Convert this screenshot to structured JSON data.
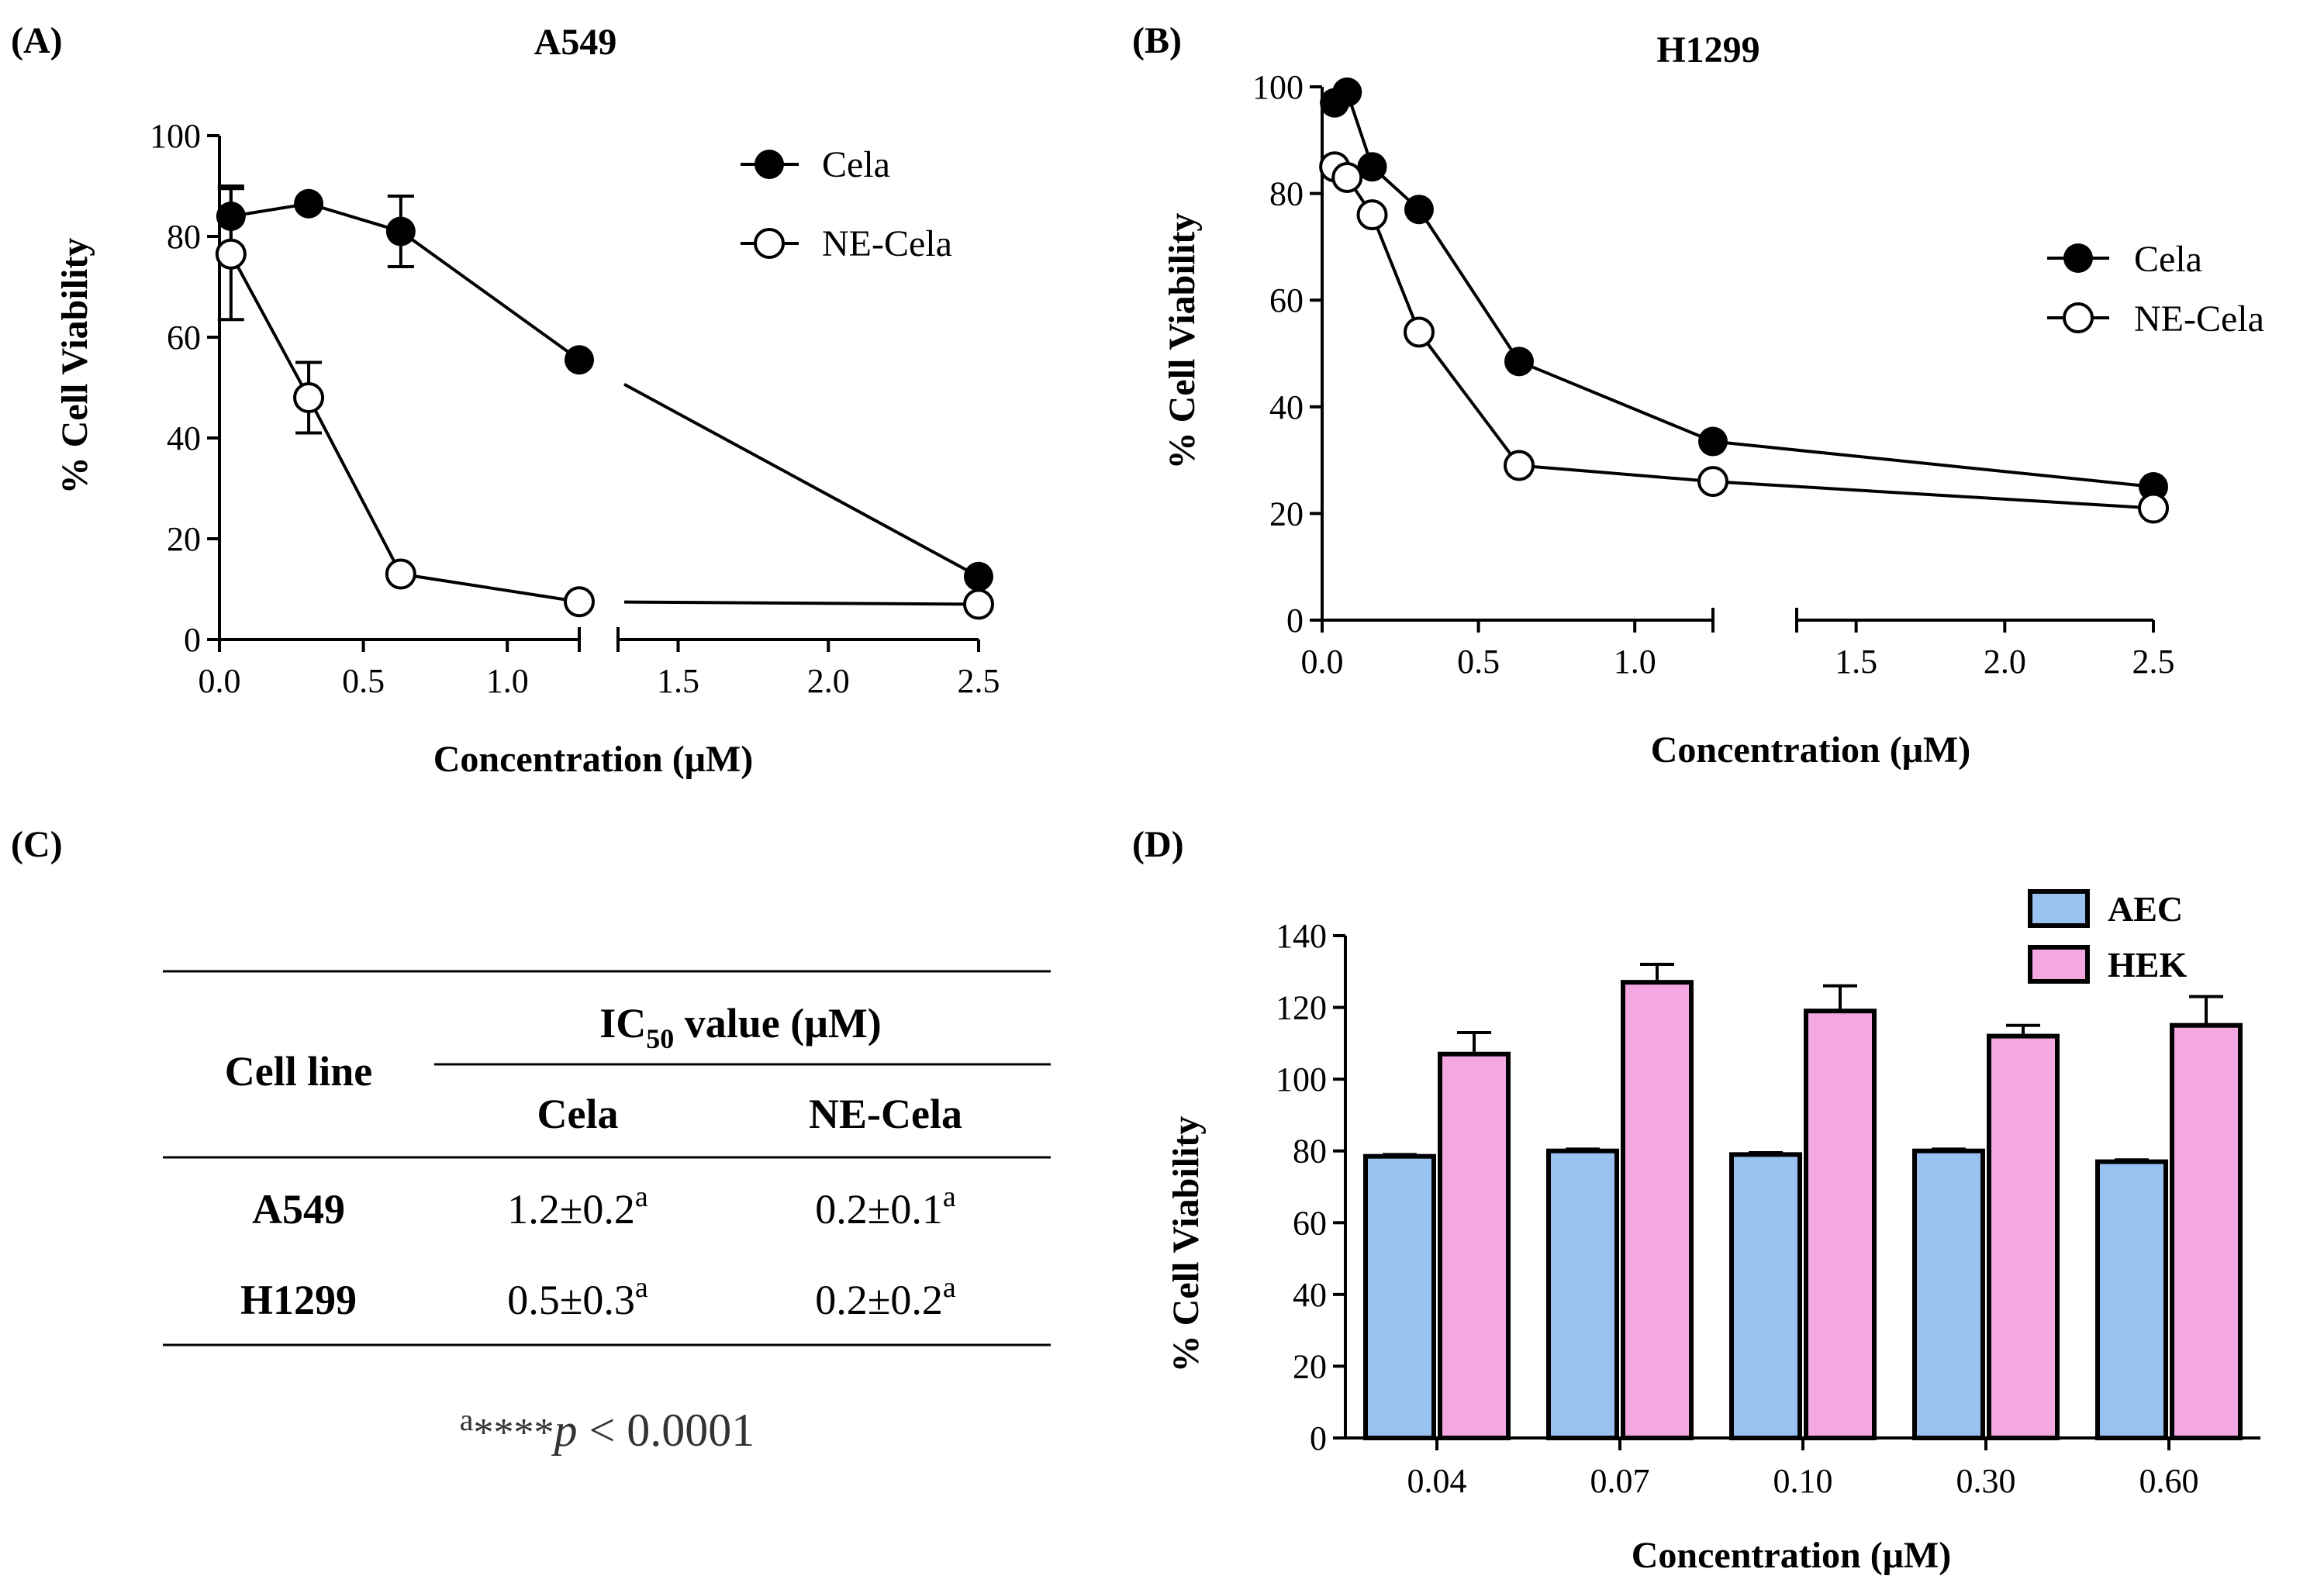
{
  "panels": {
    "A": {
      "label": "(A)",
      "title": "A549"
    },
    "B": {
      "label": "(B)",
      "title": "H1299"
    },
    "C": {
      "label": "(C)"
    },
    "D": {
      "label": "(D)"
    }
  },
  "chart_data": [
    {
      "panel": "A",
      "type": "line",
      "title": "A549",
      "xlabel": "Concentration (μM)",
      "ylabel": "% Cell Viability",
      "xlim": [
        0,
        2.5
      ],
      "ylim": [
        0,
        100
      ],
      "x_axis_break": [
        1.25,
        1.3
      ],
      "xticks": [
        "0.0",
        "0.5",
        "1.0",
        "1.5",
        "2.0",
        "2.5"
      ],
      "yticks": [
        "0",
        "20",
        "40",
        "60",
        "80",
        "100"
      ],
      "legend": "top-right",
      "series": [
        {
          "name": "Cela",
          "marker": "filled-circle",
          "points": [
            [
              0.04,
              84,
              6
            ],
            [
              0.31,
              86.5,
              0
            ],
            [
              0.63,
              81,
              7
            ],
            [
              1.25,
              55.5,
              0
            ],
            [
              2.5,
              12.5,
              0
            ]
          ]
        },
        {
          "name": "NE-Cela",
          "marker": "open-circle",
          "points": [
            [
              0.04,
              76.5,
              13
            ],
            [
              0.31,
              48,
              7
            ],
            [
              0.63,
              13,
              0
            ],
            [
              1.25,
              7.5,
              0
            ],
            [
              2.5,
              7,
              0
            ]
          ]
        }
      ]
    },
    {
      "panel": "B",
      "type": "line",
      "title": "H1299",
      "xlabel": "Concentration (μM)",
      "ylabel": "% Cell Viability",
      "xlim": [
        0,
        2.5
      ],
      "ylim": [
        0,
        100
      ],
      "x_axis_break": [
        1.25,
        1.3
      ],
      "xticks": [
        "0.0",
        "0.5",
        "1.0",
        "1.5",
        "2.0",
        "2.5"
      ],
      "yticks": [
        "0",
        "20",
        "40",
        "60",
        "80",
        "100"
      ],
      "legend": "right",
      "series": [
        {
          "name": "Cela",
          "marker": "filled-circle",
          "points": [
            [
              0.04,
              97,
              0
            ],
            [
              0.08,
              99,
              0
            ],
            [
              0.16,
              85,
              0
            ],
            [
              0.31,
              77,
              0
            ],
            [
              0.63,
              48.5,
              0
            ],
            [
              1.25,
              33.5,
              0
            ],
            [
              2.5,
              25,
              0
            ]
          ]
        },
        {
          "name": "NE-Cela",
          "marker": "open-circle",
          "points": [
            [
              0.04,
              85,
              0
            ],
            [
              0.08,
              83,
              0
            ],
            [
              0.16,
              76,
              0
            ],
            [
              0.31,
              54,
              0
            ],
            [
              0.63,
              29,
              0
            ],
            [
              1.25,
              26,
              0
            ],
            [
              2.5,
              21,
              0
            ]
          ]
        }
      ]
    },
    {
      "panel": "D",
      "type": "bar",
      "xlabel": "Concentration (μM)",
      "ylabel": "% Cell Viability",
      "ylim": [
        0,
        140
      ],
      "yticks": [
        "0",
        "20",
        "40",
        "60",
        "80",
        "100",
        "120",
        "140"
      ],
      "categories": [
        "0.04",
        "0.07",
        "0.10",
        "0.30",
        "0.60"
      ],
      "legend": "top-right",
      "series": [
        {
          "name": "AEC",
          "color": "#99c2f0",
          "values": [
            78.5,
            80,
            79,
            80,
            77
          ],
          "errors": [
            0.5,
            0.5,
            0.5,
            0.5,
            0.5
          ]
        },
        {
          "name": "HEK",
          "color": "#f4a8e2",
          "values": [
            107,
            127,
            119,
            112,
            115
          ],
          "errors": [
            6,
            5,
            7,
            3,
            8
          ]
        }
      ]
    }
  ],
  "table": {
    "header_cell_line": "Cell line",
    "ic50_prefix": "IC",
    "ic50_sub": "50",
    "ic50_suffix": " value (μM)",
    "col_cela": "Cela",
    "col_necela": "NE-Cela",
    "rows": [
      {
        "name": "A549",
        "cela": "1.2±0.2",
        "cela_sup": "a",
        "necela": "0.2±0.1",
        "necela_sup": "a"
      },
      {
        "name": "H1299",
        "cela": "0.5±0.3",
        "cela_sup": "a",
        "necela": "0.2±0.2",
        "necela_sup": "a"
      }
    ],
    "note_sup": "a",
    "note_stars": "****",
    "note_p": "p",
    "note_rest": " < 0.0001"
  }
}
